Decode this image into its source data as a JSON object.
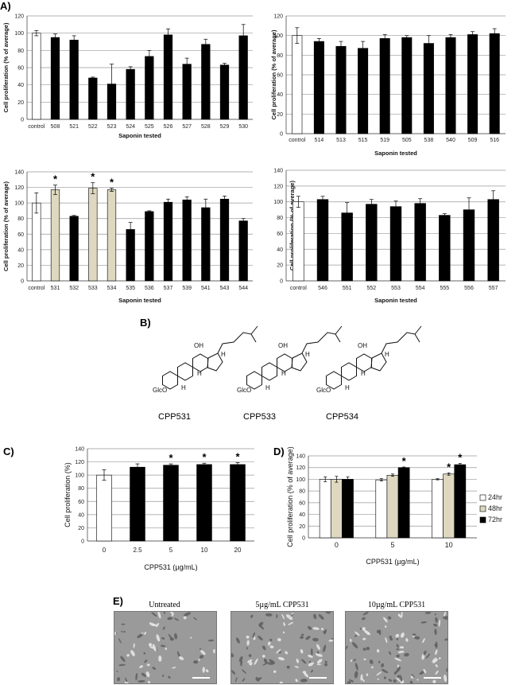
{
  "panels": {
    "A": "A)",
    "B": "B)",
    "C": "C)",
    "D": "D)",
    "E": "E)"
  },
  "chart_data": [
    {
      "id": "A1",
      "type": "bar",
      "categories": [
        "control",
        "508",
        "521",
        "522",
        "523",
        "524",
        "525",
        "526",
        "527",
        "528",
        "529",
        "530"
      ],
      "values": [
        100,
        95,
        92,
        48,
        41,
        58,
        73,
        98,
        64,
        87,
        63,
        97
      ],
      "errors": [
        3,
        4,
        5,
        1,
        23,
        3,
        7,
        7,
        7,
        6,
        2,
        13
      ],
      "fills": [
        "#ffffff",
        "#000000",
        "#000000",
        "#000000",
        "#000000",
        "#000000",
        "#000000",
        "#000000",
        "#000000",
        "#000000",
        "#000000",
        "#000000"
      ],
      "stars": [],
      "ylim": [
        0,
        120
      ],
      "yticks": [
        0,
        20,
        40,
        60,
        80,
        100,
        120
      ],
      "xlabel": "Saponin tested",
      "ylabel": "Cell proliferation (% of average)"
    },
    {
      "id": "A2",
      "type": "bar",
      "categories": [
        "control",
        "514",
        "513",
        "515",
        "519",
        "505",
        "538",
        "540",
        "509",
        "516"
      ],
      "values": [
        100,
        94,
        89,
        87,
        97,
        98,
        92,
        98,
        101,
        102
      ],
      "errors": [
        8,
        3,
        5,
        7,
        4,
        2,
        8,
        3,
        3,
        5
      ],
      "fills": [
        "#ffffff",
        "#000000",
        "#000000",
        "#000000",
        "#000000",
        "#000000",
        "#000000",
        "#000000",
        "#000000",
        "#000000"
      ],
      "stars": [],
      "ylim": [
        0,
        120
      ],
      "yticks": [
        0,
        20,
        40,
        60,
        80,
        100,
        120
      ],
      "xlabel": "Saponin tested",
      "ylabel": "Cell proliferation (% of average)"
    },
    {
      "id": "A3",
      "type": "bar",
      "categories": [
        "control",
        "531",
        "532",
        "533",
        "534",
        "535",
        "536",
        "537",
        "539",
        "541",
        "543",
        "544"
      ],
      "values": [
        100,
        117,
        83,
        119,
        117,
        66,
        89,
        101,
        104,
        94,
        105,
        77
      ],
      "errors": [
        13,
        6,
        1,
        7,
        2,
        9,
        1,
        4,
        4,
        11,
        4,
        3
      ],
      "fills": [
        "#ffffff",
        "#ddd8bf",
        "#000000",
        "#ddd8bf",
        "#ddd8bf",
        "#000000",
        "#000000",
        "#000000",
        "#000000",
        "#000000",
        "#000000",
        "#000000"
      ],
      "stars": [
        1,
        3,
        4
      ],
      "ylim": [
        0,
        140
      ],
      "yticks": [
        0,
        20,
        40,
        60,
        80,
        100,
        120,
        140
      ],
      "xlabel": "Saponin tested",
      "ylabel": "Cell proliferation (% of average)"
    },
    {
      "id": "A4",
      "type": "bar",
      "categories": [
        "control",
        "546",
        "551",
        "552",
        "553",
        "554",
        "555",
        "556",
        "557"
      ],
      "values": [
        100,
        103,
        86,
        97,
        94,
        98,
        83,
        90,
        103
      ],
      "errors": [
        7,
        4,
        13,
        6,
        7,
        6,
        2,
        15,
        11
      ],
      "fills": [
        "#ffffff",
        "#000000",
        "#000000",
        "#000000",
        "#000000",
        "#000000",
        "#000000",
        "#000000",
        "#000000"
      ],
      "stars": [],
      "ylim": [
        0,
        140
      ],
      "yticks": [
        0,
        20,
        40,
        60,
        80,
        100,
        120,
        140
      ],
      "xlabel": "Saponin tested",
      "ylabel": "Cell proliferation (% of average)"
    },
    {
      "id": "C",
      "type": "bar",
      "categories": [
        "0",
        "2.5",
        "5",
        "10",
        "20"
      ],
      "values": [
        100,
        112,
        115,
        116,
        116
      ],
      "errors": [
        8,
        5,
        2,
        2,
        3
      ],
      "fills": [
        "#ffffff",
        "#000000",
        "#000000",
        "#000000",
        "#000000"
      ],
      "stars": [
        2,
        3,
        4
      ],
      "ylim": [
        0,
        140
      ],
      "yticks": [
        0,
        20,
        40,
        60,
        80,
        100,
        120,
        140
      ],
      "xlabel": "CPP531 (µg/mL)",
      "ylabel": "Cell proliferation  (%)"
    },
    {
      "id": "D",
      "type": "bar",
      "categories": [
        "0",
        "5",
        "10"
      ],
      "series": [
        {
          "name": "24hr",
          "values": [
            100,
            99,
            100
          ],
          "errors": [
            4,
            2,
            1
          ],
          "fill": "#ffffff"
        },
        {
          "name": "48hr",
          "values": [
            100,
            107,
            109
          ],
          "errors": [
            5,
            2,
            2
          ],
          "fill": "#ddd8bf"
        },
        {
          "name": "72hr",
          "values": [
            100,
            120,
            125
          ],
          "errors": [
            4,
            1,
            2
          ],
          "fill": "#000000"
        }
      ],
      "stars": [
        [
          1,
          2
        ],
        [
          2,
          1
        ],
        [
          2,
          2
        ]
      ],
      "ylim": [
        0,
        140
      ],
      "yticks": [
        0,
        20,
        40,
        60,
        80,
        100,
        120,
        140
      ],
      "xlabel": "CPP531 (µg/mL)",
      "ylabel": "Cell proliferation (% of average)",
      "legend": "right"
    }
  ],
  "structures": {
    "names": [
      "CPP531",
      "CPP533",
      "CPP534"
    ],
    "group_label": "GlcO",
    "oh_label": "OH",
    "h_label": "H"
  },
  "micrographs": {
    "titles": [
      "Untreated",
      "5µg/mL CPP531",
      "10µg/mL CPP531"
    ]
  }
}
